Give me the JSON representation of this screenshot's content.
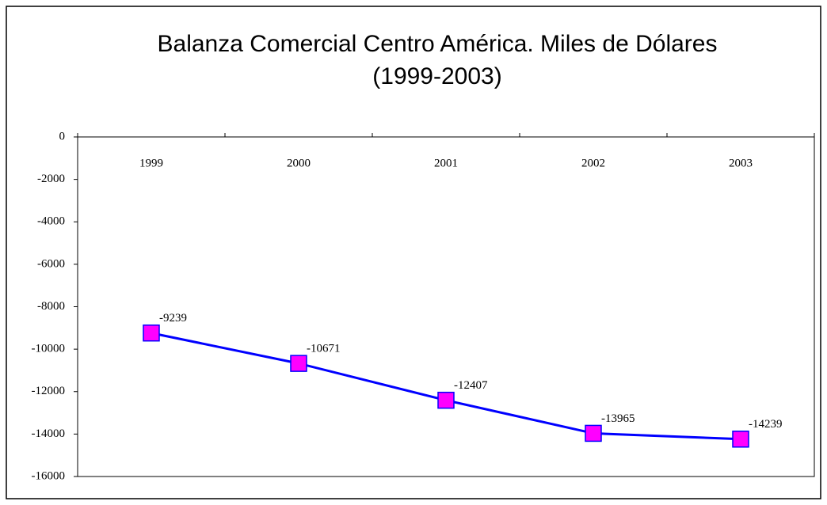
{
  "chart_data": {
    "type": "line",
    "title": "Balanza Comercial Centro América. Miles de Dólares",
    "subtitle": "(1999-2003)",
    "categories": [
      "1999",
      "2000",
      "2001",
      "2002",
      "2003"
    ],
    "series": [
      {
        "name": "Balanza Comercial",
        "color": "#0000ff",
        "marker_color": "#ff00ff",
        "values": [
          -9239,
          -10671,
          -12407,
          -13965,
          -14239
        ]
      }
    ],
    "ylim": [
      -16000,
      0
    ],
    "yticks": [
      0,
      -2000,
      -4000,
      -6000,
      -8000,
      -10000,
      -12000,
      -14000,
      -16000
    ],
    "grid": false
  }
}
